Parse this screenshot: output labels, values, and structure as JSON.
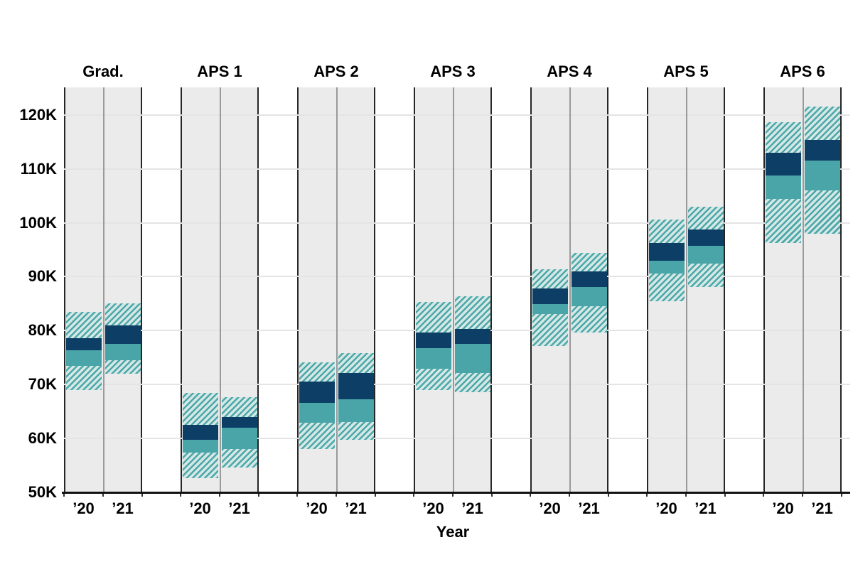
{
  "chart_data": {
    "type": "grouped-range-boxes",
    "title": "",
    "xlabel": "Year",
    "ylabel": "",
    "legend_position": "none",
    "grid": true,
    "y_axis": {
      "min": 50000,
      "max": 125000,
      "unit": "K",
      "tick_values": [
        50,
        60,
        70,
        80,
        90,
        100,
        110,
        120
      ],
      "tick_labels": [
        "50K",
        "60K",
        "70K",
        "80K",
        "90K",
        "100K",
        "110K",
        "120K"
      ]
    },
    "year_labels": [
      "’20",
      "’21"
    ],
    "band_meaning": {
      "hatch": "full range (low to high)",
      "teal_solid": "lower-quartile to median band",
      "navy_solid": "median to upper-quartile band"
    },
    "groups": [
      {
        "label": "Grad.",
        "bars": [
          {
            "year": "’20",
            "low": 69.0,
            "q1": 73.5,
            "median": 76.4,
            "q3": 78.6,
            "high": 83.5
          },
          {
            "year": "’21",
            "low": 72.0,
            "q1": 74.5,
            "median": 77.6,
            "q3": 81.0,
            "high": 85.0
          }
        ]
      },
      {
        "label": "APS 1",
        "bars": [
          {
            "year": "’20",
            "low": 52.6,
            "q1": 57.4,
            "median": 59.8,
            "q3": 62.5,
            "high": 68.5
          },
          {
            "year": "’21",
            "low": 54.6,
            "q1": 58.0,
            "median": 62.0,
            "q3": 64.0,
            "high": 67.7
          }
        ]
      },
      {
        "label": "APS 2",
        "bars": [
          {
            "year": "’20",
            "low": 58.0,
            "q1": 62.9,
            "median": 66.6,
            "q3": 70.6,
            "high": 74.1
          },
          {
            "year": "’21",
            "low": 59.8,
            "q1": 63.1,
            "median": 67.3,
            "q3": 72.1,
            "high": 75.8
          }
        ]
      },
      {
        "label": "APS 3",
        "bars": [
          {
            "year": "’20",
            "low": 69.0,
            "q1": 72.9,
            "median": 76.8,
            "q3": 79.7,
            "high": 85.3
          },
          {
            "year": "’21",
            "low": 68.6,
            "q1": 72.1,
            "median": 77.5,
            "q3": 80.3,
            "high": 86.4
          }
        ]
      },
      {
        "label": "APS 4",
        "bars": [
          {
            "year": "’20",
            "low": 77.2,
            "q1": 83.1,
            "median": 84.9,
            "q3": 87.8,
            "high": 91.4
          },
          {
            "year": "’21",
            "low": 79.7,
            "q1": 84.5,
            "median": 88.1,
            "q3": 91.0,
            "high": 94.4
          }
        ]
      },
      {
        "label": "APS 5",
        "bars": [
          {
            "year": "’20",
            "low": 85.4,
            "q1": 90.6,
            "median": 92.9,
            "q3": 96.3,
            "high": 100.6
          },
          {
            "year": "’21",
            "low": 88.1,
            "q1": 92.4,
            "median": 95.7,
            "q3": 98.8,
            "high": 102.9
          }
        ]
      },
      {
        "label": "APS 6",
        "bars": [
          {
            "year": "’20",
            "low": 96.3,
            "q1": 104.4,
            "median": 108.8,
            "q3": 113.0,
            "high": 118.7
          },
          {
            "year": "’21",
            "low": 98.0,
            "q1": 106.0,
            "median": 111.5,
            "q3": 115.4,
            "high": 121.6
          }
        ]
      }
    ],
    "colors": {
      "band_upper_navy": "#0d3f66",
      "band_lower_teal": "#4aa5a8",
      "hatch_stripe": "#4ba7a9",
      "hatch_background": "#d6e8e5",
      "panel_background": "#ebebeb",
      "panel_border": "#262626",
      "column_divider": "#9a9a9a",
      "gridline": "#e4e4e4",
      "axis": "#111111",
      "text": "#000000"
    }
  }
}
